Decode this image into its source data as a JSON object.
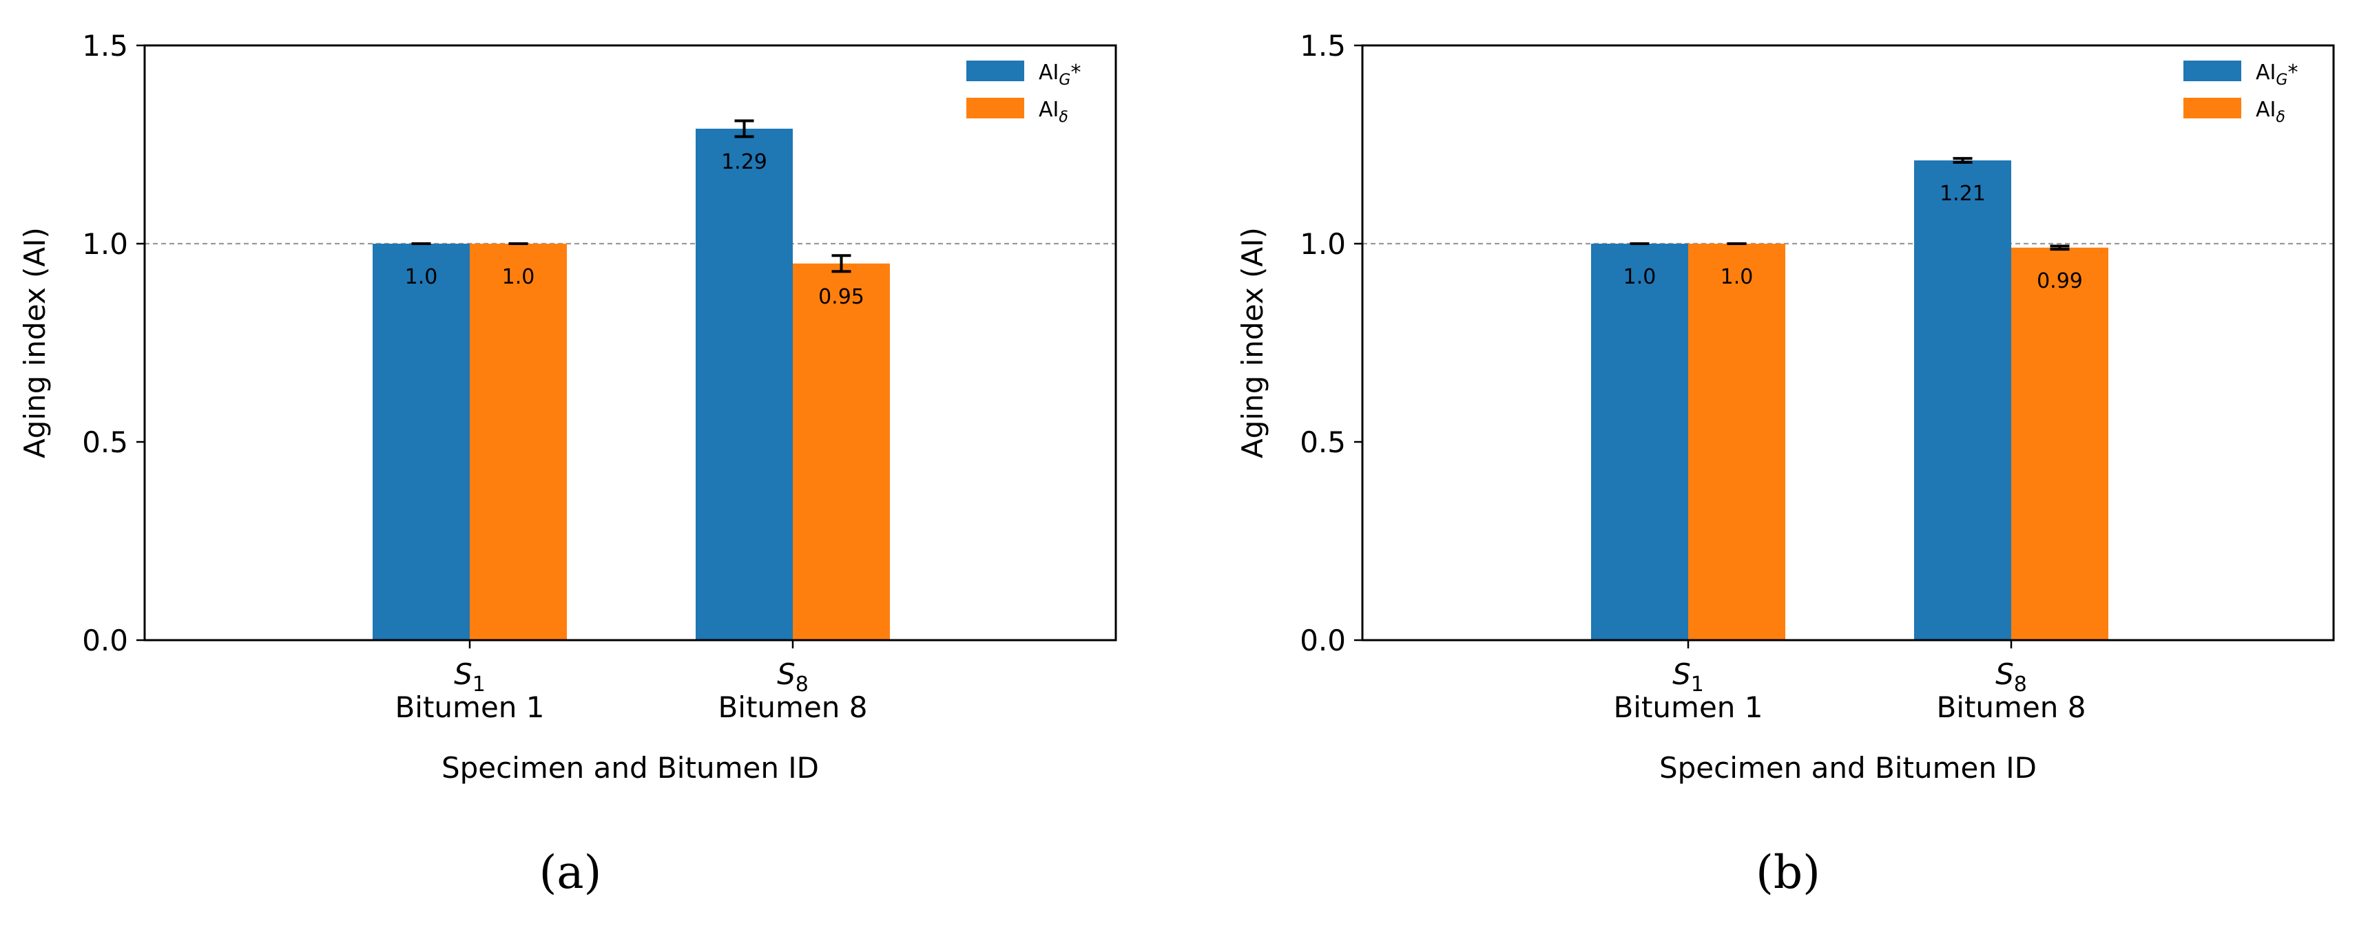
{
  "chart_data": [
    {
      "type": "bar",
      "panel_label": "(a)",
      "categories": [
        {
          "symbol": "S",
          "subscript": "1",
          "name": "Bitumen 1"
        },
        {
          "symbol": "S",
          "subscript": "8",
          "name": "Bitumen 8"
        }
      ],
      "series": [
        {
          "name": "AI",
          "name_subscript": "G",
          "name_suffix": "*",
          "color": "#1f77b4",
          "values": [
            1.0,
            1.29
          ],
          "errors": [
            0.0,
            0.02
          ],
          "value_labels": [
            "1.0",
            "1.29"
          ]
        },
        {
          "name": "AI",
          "name_subscript": "δ",
          "name_suffix": "",
          "color": "#ff7f0e",
          "values": [
            1.0,
            0.95
          ],
          "errors": [
            0.0,
            0.02
          ],
          "value_labels": [
            "1.0",
            "0.95"
          ]
        }
      ],
      "xlabel": "Specimen and Bitumen ID",
      "ylabel": "Aging index (AI)",
      "ylim": [
        0,
        1.5
      ],
      "yticks": [
        "0.0",
        "0.5",
        "1.0",
        "1.5"
      ],
      "reference_line": 1.0,
      "legend": "top-right"
    },
    {
      "type": "bar",
      "panel_label": "(b)",
      "categories": [
        {
          "symbol": "S",
          "subscript": "1",
          "name": "Bitumen 1"
        },
        {
          "symbol": "S",
          "subscript": "8",
          "name": "Bitumen 8"
        }
      ],
      "series": [
        {
          "name": "AI",
          "name_subscript": "G",
          "name_suffix": "*",
          "color": "#1f77b4",
          "values": [
            1.0,
            1.21
          ],
          "errors": [
            0.0,
            0.005
          ],
          "value_labels": [
            "1.0",
            "1.21"
          ]
        },
        {
          "name": "AI",
          "name_subscript": "δ",
          "name_suffix": "",
          "color": "#ff7f0e",
          "values": [
            1.0,
            0.99
          ],
          "errors": [
            0.0,
            0.004
          ],
          "value_labels": [
            "1.0",
            "0.99"
          ]
        }
      ],
      "xlabel": "Specimen and Bitumen ID",
      "ylabel": "Aging index (AI)",
      "ylim": [
        0,
        1.5
      ],
      "yticks": [
        "0.0",
        "0.5",
        "1.0",
        "1.5"
      ],
      "reference_line": 1.0,
      "legend": "top-right"
    }
  ]
}
